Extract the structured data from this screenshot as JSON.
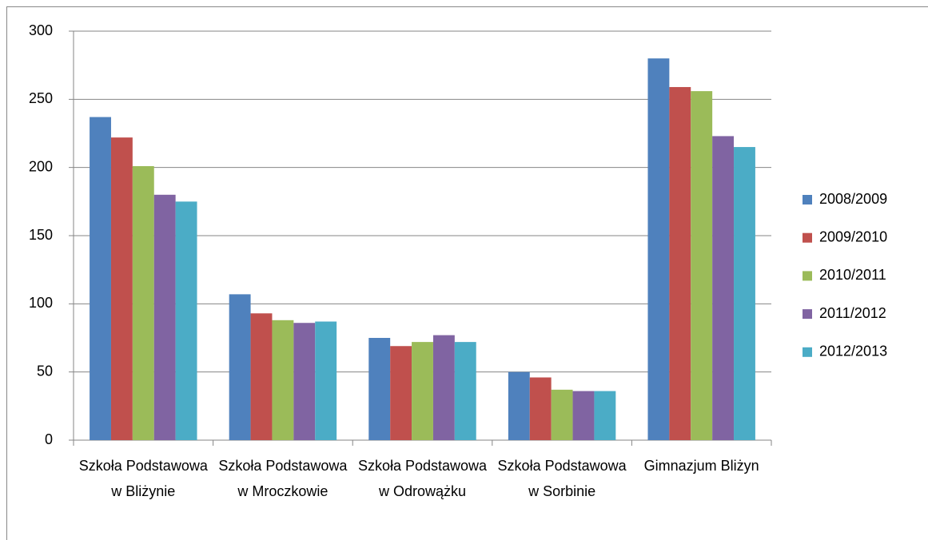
{
  "chart_data": {
    "type": "bar",
    "categories": [
      "Szkoła Podstawowa w Bliżynie",
      "Szkoła Podstawowa w Mroczkowie",
      "Szkoła Podstawowa w Odrowążku",
      "Szkoła Podstawowa w Sorbinie",
      "Gimnazjum Bliżyn"
    ],
    "series": [
      {
        "name": "2008/2009",
        "color": "#4f81bd",
        "values": [
          237,
          107,
          75,
          50,
          280
        ]
      },
      {
        "name": "2009/2010",
        "color": "#c0504d",
        "values": [
          222,
          93,
          69,
          46,
          259
        ]
      },
      {
        "name": "2010/2011",
        "color": "#9bbb59",
        "values": [
          201,
          88,
          72,
          37,
          256
        ]
      },
      {
        "name": "2011/2012",
        "color": "#8064a2",
        "values": [
          180,
          86,
          77,
          36,
          223
        ]
      },
      {
        "name": "2012/2013",
        "color": "#4bacc6",
        "values": [
          175,
          87,
          72,
          36,
          215
        ]
      }
    ],
    "ylim": [
      0,
      300
    ],
    "yticks": [
      0,
      50,
      100,
      150,
      200,
      250,
      300
    ],
    "grid": true,
    "legend": "right"
  }
}
